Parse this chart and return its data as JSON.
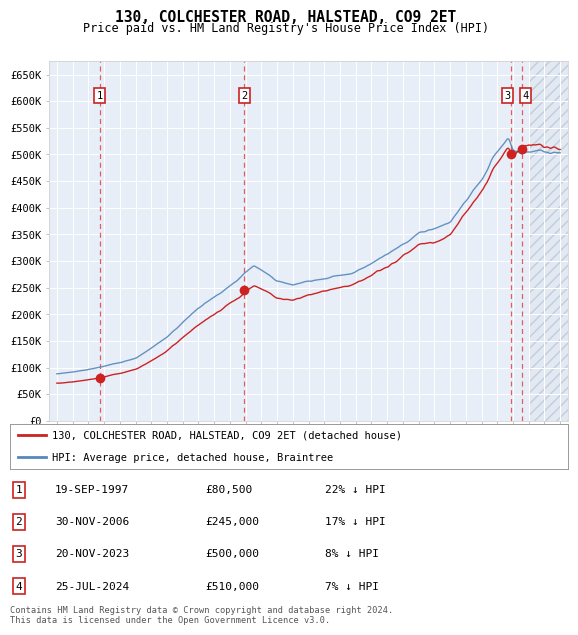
{
  "title": "130, COLCHESTER ROAD, HALSTEAD, CO9 2ET",
  "subtitle": "Price paid vs. HM Land Registry's House Price Index (HPI)",
  "xlim": [
    1994.5,
    2027.5
  ],
  "ylim": [
    0,
    675000
  ],
  "yticks": [
    0,
    50000,
    100000,
    150000,
    200000,
    250000,
    300000,
    350000,
    400000,
    450000,
    500000,
    550000,
    600000,
    650000
  ],
  "ytick_labels": [
    "£0",
    "£50K",
    "£100K",
    "£150K",
    "£200K",
    "£250K",
    "£300K",
    "£350K",
    "£400K",
    "£450K",
    "£500K",
    "£550K",
    "£600K",
    "£650K"
  ],
  "xticks": [
    1995,
    1996,
    1997,
    1998,
    1999,
    2000,
    2001,
    2002,
    2003,
    2004,
    2005,
    2006,
    2007,
    2008,
    2009,
    2010,
    2011,
    2012,
    2013,
    2014,
    2015,
    2016,
    2017,
    2018,
    2019,
    2020,
    2021,
    2022,
    2023,
    2024,
    2025,
    2026,
    2027
  ],
  "sale_dates": [
    1997.72,
    2006.92,
    2023.89,
    2024.56
  ],
  "sale_prices": [
    80500,
    245000,
    500000,
    510000
  ],
  "sale_labels": [
    "1",
    "2",
    "3",
    "4"
  ],
  "hpi_color": "#5588bb",
  "sale_color": "#cc2222",
  "dot_color": "#cc2222",
  "background_color": "#ffffff",
  "plot_bg_color": "#e8eef8",
  "grid_color": "#ffffff",
  "legend_line1": "130, COLCHESTER ROAD, HALSTEAD, CO9 2ET (detached house)",
  "legend_line2": "HPI: Average price, detached house, Braintree",
  "table_data": [
    [
      "1",
      "19-SEP-1997",
      "£80,500",
      "22% ↓ HPI"
    ],
    [
      "2",
      "30-NOV-2006",
      "£245,000",
      "17% ↓ HPI"
    ],
    [
      "3",
      "20-NOV-2023",
      "£500,000",
      "8% ↓ HPI"
    ],
    [
      "4",
      "25-JUL-2024",
      "£510,000",
      "7% ↓ HPI"
    ]
  ],
  "footer": "Contains HM Land Registry data © Crown copyright and database right 2024.\nThis data is licensed under the Open Government Licence v3.0.",
  "hatch_color": "#aabbdd",
  "future_start": 2025.0,
  "vline_color": "#dd4444"
}
